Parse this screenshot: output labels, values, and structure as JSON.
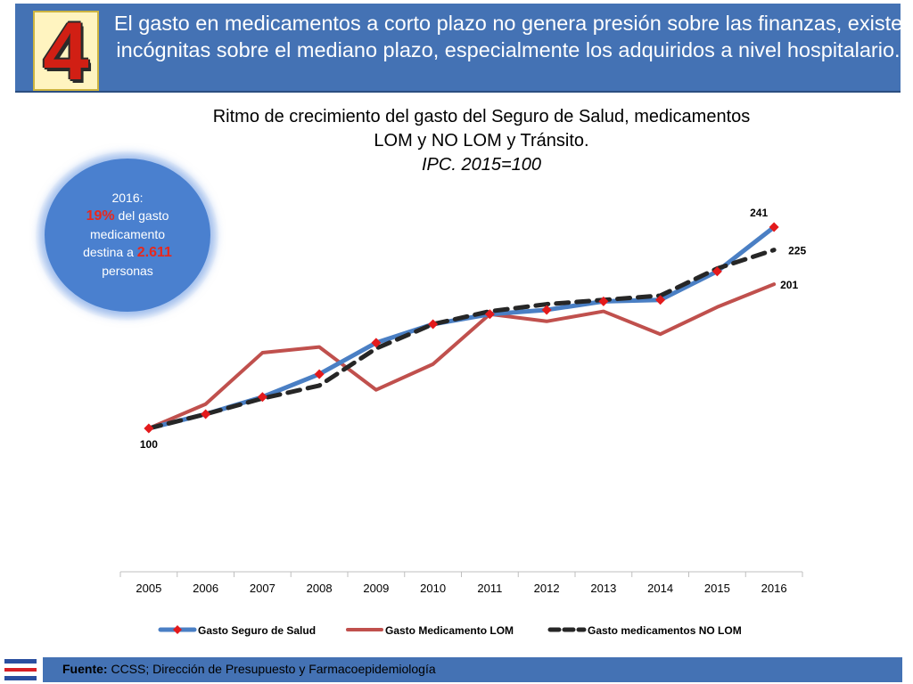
{
  "header": {
    "badge_number": "4",
    "text": "El gasto en medicamentos a corto plazo no genera presión sobre las finanzas, existe incógnitas sobre el mediano plazo, especialmente los adquiridos a nivel hospitalario."
  },
  "chart_title": {
    "line1": "Ritmo de crecimiento del gasto del Seguro de Salud, medicamentos",
    "line2": "LOM y NO LOM y Tránsito.",
    "line3": "IPC. 2015=100"
  },
  "callout": {
    "year": "2016:",
    "pct": "19%",
    "text1": " del gasto",
    "text2": "medicamento",
    "text3": "destina a ",
    "count": "2.611",
    "text4": "personas"
  },
  "footer": {
    "label": "Fuente:",
    "text": " CCSS; Dirección de Presupuesto y Farmacoepidemiología"
  },
  "colors": {
    "header_bg": "#4472b4",
    "series_salud": "#4a7fc4",
    "series_lom": "#c0504d",
    "series_nolom": "#262626",
    "marker": "#e31a1c",
    "callout_bg": "#4a80cf",
    "highlight": "#e8281d"
  },
  "chart_data": {
    "type": "line",
    "categories": [
      "2005",
      "2006",
      "2007",
      "2008",
      "2009",
      "2010",
      "2011",
      "2012",
      "2013",
      "2014",
      "2015",
      "2016"
    ],
    "series": [
      {
        "name": "Gasto Seguro de Salud",
        "values": [
          100,
          110,
          122,
          138,
          160,
          173,
          180,
          183,
          189,
          190,
          210,
          241
        ],
        "color": "#4a7fc4",
        "style": "solid-with-diamond-markers"
      },
      {
        "name": "Gasto Medicamento LOM",
        "values": [
          100,
          117,
          153,
          157,
          127,
          145,
          180,
          175,
          182,
          166,
          185,
          201
        ],
        "color": "#c0504d",
        "style": "solid"
      },
      {
        "name": "Gasto medicamentos NO LOM",
        "values": [
          100,
          110,
          121,
          130,
          156,
          173,
          182,
          187,
          190,
          193,
          212,
          225
        ],
        "color": "#262626",
        "style": "dashed"
      }
    ],
    "data_labels": [
      {
        "category": "2005",
        "series": "Gasto Seguro de Salud",
        "value": "100"
      },
      {
        "category": "2016",
        "series": "Gasto Seguro de Salud",
        "value": "241"
      },
      {
        "category": "2016",
        "series": "Gasto medicamentos NO LOM",
        "value": "225"
      },
      {
        "category": "2016",
        "series": "Gasto Medicamento LOM",
        "value": "201"
      }
    ],
    "ylim": [
      0,
      250
    ],
    "grid": false,
    "legend": "bottom"
  }
}
